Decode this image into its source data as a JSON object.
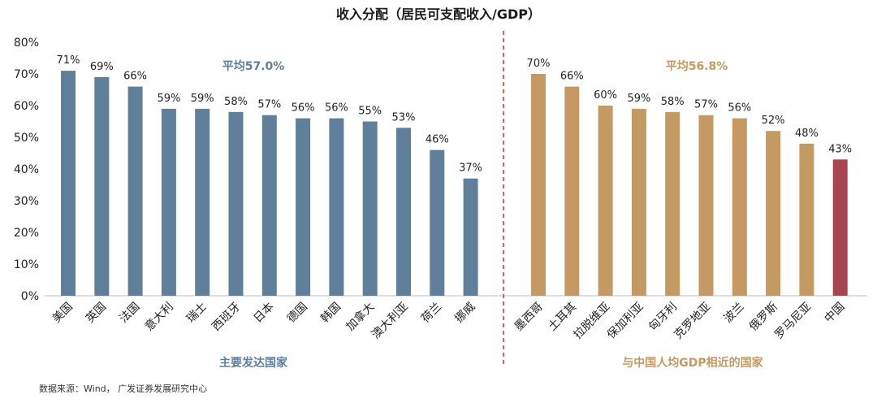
{
  "chart_data": {
    "type": "bar",
    "title": "收入分配（居民可支配收入/GDP）",
    "source": "数据来源：Wind， 广发证券发展研究中心",
    "ylim": [
      0,
      80
    ],
    "yticks": [
      "0%",
      "10%",
      "20%",
      "30%",
      "40%",
      "50%",
      "60%",
      "70%",
      "80%"
    ],
    "grid": false,
    "colors": {
      "developed": "#5f7f9b",
      "similar": "#c49a62",
      "china": "#a84650",
      "divider": "#c0392b"
    },
    "groups": [
      {
        "name": "主要发达国家",
        "average_label": "平均57.0%",
        "categories": [
          "美国",
          "英国",
          "法国",
          "意大利",
          "瑞士",
          "西班牙",
          "日本",
          "德国",
          "韩国",
          "加拿大",
          "澳大利亚",
          "荷兰",
          "挪威"
        ],
        "values": [
          71,
          69,
          66,
          59,
          59,
          58,
          57,
          56,
          56,
          55,
          53,
          46,
          37
        ],
        "labels": [
          "71%",
          "69%",
          "66%",
          "59%",
          "59%",
          "58%",
          "57%",
          "56%",
          "56%",
          "55%",
          "53%",
          "46%",
          "37%"
        ]
      },
      {
        "name": "与中国人均GDP相近的国家",
        "average_label": "平均56.8%",
        "categories": [
          "墨西哥",
          "土耳其",
          "拉脱维亚",
          "保加利亚",
          "匈牙利",
          "克罗地亚",
          "波兰",
          "俄罗斯",
          "罗马尼亚",
          "中国"
        ],
        "values": [
          70,
          66,
          60,
          59,
          58,
          57,
          56,
          52,
          48,
          43
        ],
        "labels": [
          "70%",
          "66%",
          "60%",
          "59%",
          "58%",
          "57%",
          "56%",
          "52%",
          "48%",
          "43%"
        ]
      }
    ]
  }
}
